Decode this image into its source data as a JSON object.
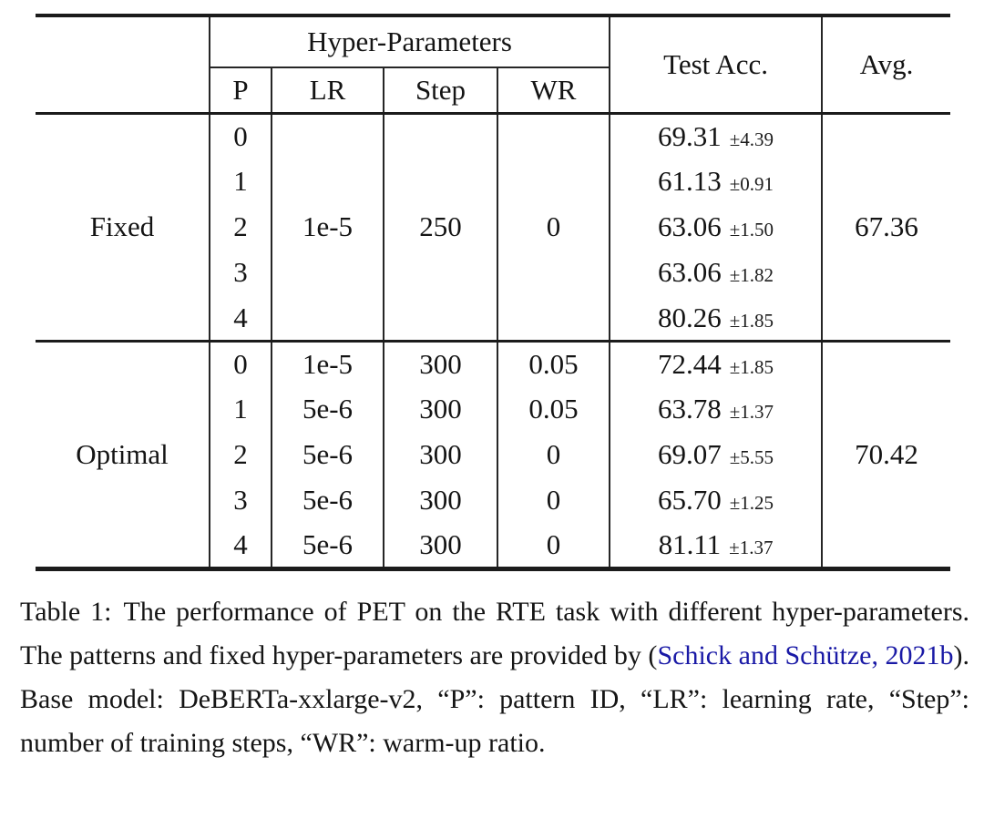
{
  "table": {
    "header": {
      "group_label": "Hyper-Parameters",
      "sub_columns": {
        "p": "P",
        "lr": "LR",
        "step": "Step",
        "wr": "WR"
      },
      "test_acc_label": "Test Acc.",
      "avg_label": "Avg."
    },
    "blocks": [
      {
        "label": "Fixed",
        "lr": "1e-5",
        "step": "250",
        "wr": "0",
        "avg": "67.36",
        "rows": [
          {
            "p": "0",
            "acc": "69.31",
            "std": "±4.39"
          },
          {
            "p": "1",
            "acc": "61.13",
            "std": "±0.91"
          },
          {
            "p": "2",
            "acc": "63.06",
            "std": "±1.50"
          },
          {
            "p": "3",
            "acc": "63.06",
            "std": "±1.82"
          },
          {
            "p": "4",
            "acc": "80.26",
            "std": "±1.85"
          }
        ]
      },
      {
        "label": "Optimal",
        "avg": "70.42",
        "rows": [
          {
            "p": "0",
            "lr": "1e-5",
            "step": "300",
            "wr": "0.05",
            "acc": "72.44",
            "std": "±1.85"
          },
          {
            "p": "1",
            "lr": "5e-6",
            "step": "300",
            "wr": "0.05",
            "acc": "63.78",
            "std": "±1.37"
          },
          {
            "p": "2",
            "lr": "5e-6",
            "step": "300",
            "wr": "0",
            "acc": "69.07",
            "std": "±5.55"
          },
          {
            "p": "3",
            "lr": "5e-6",
            "step": "300",
            "wr": "0",
            "acc": "65.70",
            "std": "±1.25"
          },
          {
            "p": "4",
            "lr": "5e-6",
            "step": "300",
            "wr": "0",
            "acc": "81.11",
            "std": "±1.37"
          }
        ]
      }
    ]
  },
  "caption": {
    "label": "Table 1:",
    "pre": "The performance of PET on the RTE task with different hyper-parameters.  The patterns and fixed hyper-parameters are provided by (",
    "authors_link": "Schick and Schütze",
    "separator": ", ",
    "year_link": "2021b",
    "post": "). Base model: DeBERTa-xxlarge-v2, “P”: pattern ID, “LR”: learning rate, “Step”: number of training steps, “WR”: warm-up ratio.",
    "link_color": "#1a1aa6"
  }
}
